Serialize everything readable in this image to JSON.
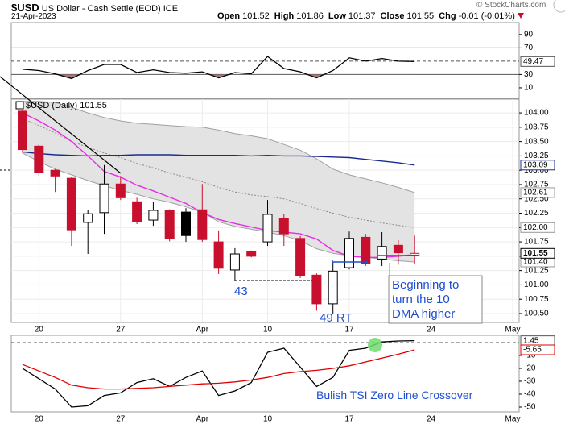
{
  "header": {
    "symbol": "$USD",
    "name": "US Dollar - Cash Settle (EOD) ICE",
    "date": "21-Apr-2023",
    "source": "© StockCharts.com",
    "quote": [
      {
        "label": "Open",
        "value": "101.52"
      },
      {
        "label": "High",
        "value": "101.86"
      },
      {
        "label": "Low",
        "value": "101.37"
      },
      {
        "label": "Close",
        "value": "101.55"
      },
      {
        "label": "Chg",
        "value": "-0.01 (-0.01%)"
      }
    ]
  },
  "chart_data": [
    {
      "type": "line",
      "ylim": [
        -5.8,
        108
      ],
      "yticks": [
        90,
        70,
        30,
        10
      ],
      "grid": false,
      "overbought": 70,
      "midline": 50,
      "oversold": 30,
      "fill_color": "#a27878",
      "series": [
        {
          "color": "#000000",
          "values": [
            38,
            36,
            31,
            24,
            36,
            45,
            45,
            33,
            37,
            33,
            32,
            34,
            25,
            33,
            31,
            57,
            39,
            34,
            25,
            36,
            55,
            50,
            54,
            50,
            49.47
          ]
        }
      ],
      "last_values": [
        {
          "value": 49.47,
          "color": "#555555"
        }
      ]
    },
    {
      "type": "candlestick",
      "legend": "$USD (Daily) 101.55",
      "ylim": [
        100.345,
        104.24
      ],
      "grid": true,
      "categories": [
        null,
        "20",
        null,
        null,
        null,
        null,
        "27",
        null,
        null,
        null,
        null,
        "Apr",
        null,
        null,
        null,
        "10",
        null,
        null,
        null,
        null,
        "17",
        null,
        null,
        null,
        null,
        "24",
        null,
        null,
        null,
        null,
        "May"
      ],
      "yticks": [
        {
          "value": 104,
          "label": "104.00"
        },
        103.75,
        {
          "value": 103.5,
          "label": "103.50"
        },
        103.25,
        {
          "value": 103,
          "label": "103.00"
        },
        102.75,
        {
          "value": 102.5,
          "label": "102.50"
        },
        102.25,
        {
          "value": 102,
          "label": "102.00"
        },
        101.75,
        {
          "value": 101.5,
          "label": "101.50"
        },
        101.25,
        {
          "value": 101,
          "label": "101.00"
        },
        100.75,
        {
          "value": 100.5,
          "label": "100.50"
        }
      ],
      "up_color": "#000000",
      "down_color": "#c8102e",
      "open": [
        104.03,
        103.42,
        103.0,
        102.86,
        102.09,
        102.26,
        102.76,
        102.45,
        102.13,
        102.3,
        102.27,
        102.31,
        101.75,
        101.26,
        101.58,
        101.75,
        102.16,
        101.81,
        101.17,
        100.67,
        101.3,
        101.83,
        101.45,
        101.69,
        101.52,
        null,
        null,
        null,
        null,
        null,
        null
      ],
      "high": [
        104.05,
        103.45,
        103.02,
        102.88,
        102.3,
        103.09,
        102.9,
        102.52,
        102.45,
        102.32,
        102.34,
        102.76,
        101.95,
        101.64,
        101.6,
        102.48,
        102.23,
        101.85,
        101.2,
        101.4,
        101.93,
        101.89,
        101.92,
        101.78,
        101.86,
        null,
        null,
        null,
        null,
        null,
        null
      ],
      "low": [
        103.3,
        102.9,
        102.62,
        101.68,
        101.54,
        101.89,
        102.48,
        102.06,
        102.03,
        101.76,
        101.75,
        101.75,
        101.19,
        101.07,
        101.48,
        101.68,
        101.68,
        101.12,
        100.55,
        100.5,
        101.27,
        101.33,
        101.33,
        101.35,
        101.37,
        null,
        null,
        null,
        null,
        null,
        null
      ],
      "close": [
        103.36,
        102.96,
        102.9,
        101.96,
        102.24,
        102.76,
        102.52,
        102.1,
        102.3,
        101.81,
        101.86,
        101.79,
        101.29,
        101.54,
        101.5,
        102.23,
        101.89,
        101.16,
        100.67,
        101.24,
        101.81,
        101.37,
        101.67,
        101.56,
        101.55,
        null,
        null,
        null,
        null,
        null,
        null
      ],
      "band": {
        "color": "#e3e3e3",
        "edge_color": "#a0a0a0",
        "upper": [
          104.2,
          104.2,
          104.18,
          104.1,
          104.0,
          103.92,
          103.86,
          103.82,
          103.8,
          103.78,
          103.76,
          103.75,
          103.7,
          103.64,
          103.6,
          103.55,
          103.45,
          103.35,
          103.2,
          103.02,
          102.92,
          102.85,
          102.78,
          102.7,
          102.61,
          null,
          null,
          null,
          null,
          null,
          null
        ],
        "lower": [
          103.3,
          103.15,
          103.02,
          102.92,
          102.82,
          102.73,
          102.65,
          102.58,
          102.5,
          102.44,
          102.36,
          102.27,
          102.1,
          102.02,
          101.97,
          101.92,
          101.86,
          101.77,
          101.63,
          101.55,
          101.51,
          101.48,
          101.45,
          101.42,
          101.4,
          null,
          null,
          null,
          null,
          null,
          null
        ]
      },
      "series": [
        {
          "color": "#888888",
          "dash": true,
          "values": [
            103.9,
            103.78,
            103.65,
            103.5,
            103.4,
            103.3,
            103.22,
            103.12,
            103.04,
            102.95,
            102.88,
            102.8,
            102.7,
            102.62,
            102.57,
            102.54,
            102.5,
            102.42,
            102.33,
            102.25,
            102.18,
            102.13,
            102.08,
            102.04,
            102.0,
            null,
            null,
            null,
            null,
            null,
            null
          ]
        },
        {
          "color": "#1b2a8f",
          "values": [
            103.32,
            103.29,
            103.27,
            103.26,
            103.25,
            103.26,
            103.26,
            103.27,
            103.27,
            103.27,
            103.26,
            103.26,
            103.26,
            103.26,
            103.25,
            103.26,
            103.25,
            103.25,
            103.24,
            103.23,
            103.22,
            103.19,
            103.16,
            103.13,
            103.09,
            null,
            null,
            null,
            null,
            null,
            null
          ]
        },
        {
          "color": "#e62ee6",
          "values": [
            104.0,
            103.86,
            103.7,
            103.5,
            103.25,
            102.98,
            102.88,
            102.74,
            102.64,
            102.53,
            102.42,
            102.26,
            102.14,
            102.07,
            102.01,
            101.95,
            101.92,
            101.89,
            101.8,
            101.6,
            101.5,
            101.48,
            101.48,
            101.5,
            101.53,
            null,
            null,
            null,
            null,
            null,
            null
          ]
        }
      ],
      "last_values": [
        {
          "value": 103.09,
          "color": "#1b2a8f"
        },
        {
          "value": 102.61,
          "color": "#999999"
        },
        {
          "value": 102,
          "label": "102.00",
          "color": "#999999"
        },
        {
          "value": 101.4,
          "label": "101.40",
          "color": "#999999"
        },
        {
          "value": 101.55,
          "color": "#000000",
          "bold": true
        }
      ],
      "annotations": [
        "43",
        "49 RT",
        "Beginning to turn the 10 DMA higher"
      ]
    },
    {
      "type": "line",
      "ylim": [
        -53.75,
        5.6
      ],
      "yticks": [
        -10,
        -20,
        -30,
        -40,
        -50
      ],
      "grid": false,
      "zero_line": 0,
      "categories": [
        null,
        "20",
        null,
        null,
        null,
        null,
        "27",
        null,
        null,
        null,
        null,
        "Apr",
        null,
        null,
        null,
        "10",
        null,
        null,
        null,
        null,
        "17",
        null,
        null,
        null,
        null,
        "24",
        null,
        null,
        null,
        null,
        "May"
      ],
      "series": [
        {
          "color": "#000000",
          "values": [
            -20,
            -28,
            -36,
            -50,
            -49,
            -41,
            -39,
            -31,
            -28,
            -34,
            -27,
            -22,
            -41,
            -37.5,
            -31,
            -7.5,
            -4.4,
            -19,
            -34,
            -27,
            -6,
            -4.4,
            0.5,
            1.2,
            1.45,
            null,
            null,
            null,
            null,
            null,
            null
          ]
        },
        {
          "color": "#e00000",
          "values": [
            -17,
            -22,
            -27,
            -33,
            -35,
            -36,
            -36,
            -35.5,
            -35,
            -34,
            -33,
            -32,
            -31.5,
            -30.5,
            -29,
            -27,
            -24,
            -22.5,
            -21.5,
            -20,
            -18,
            -15,
            -12,
            -9,
            -5.65,
            null,
            null,
            null,
            null,
            null,
            null
          ]
        }
      ],
      "last_values": [
        {
          "value": 1.45,
          "color": "#555555"
        },
        {
          "value": -5.65,
          "color": "#e00000"
        }
      ],
      "annotations": [
        "Bulish TSI Zero Line Crossover"
      ]
    }
  ]
}
